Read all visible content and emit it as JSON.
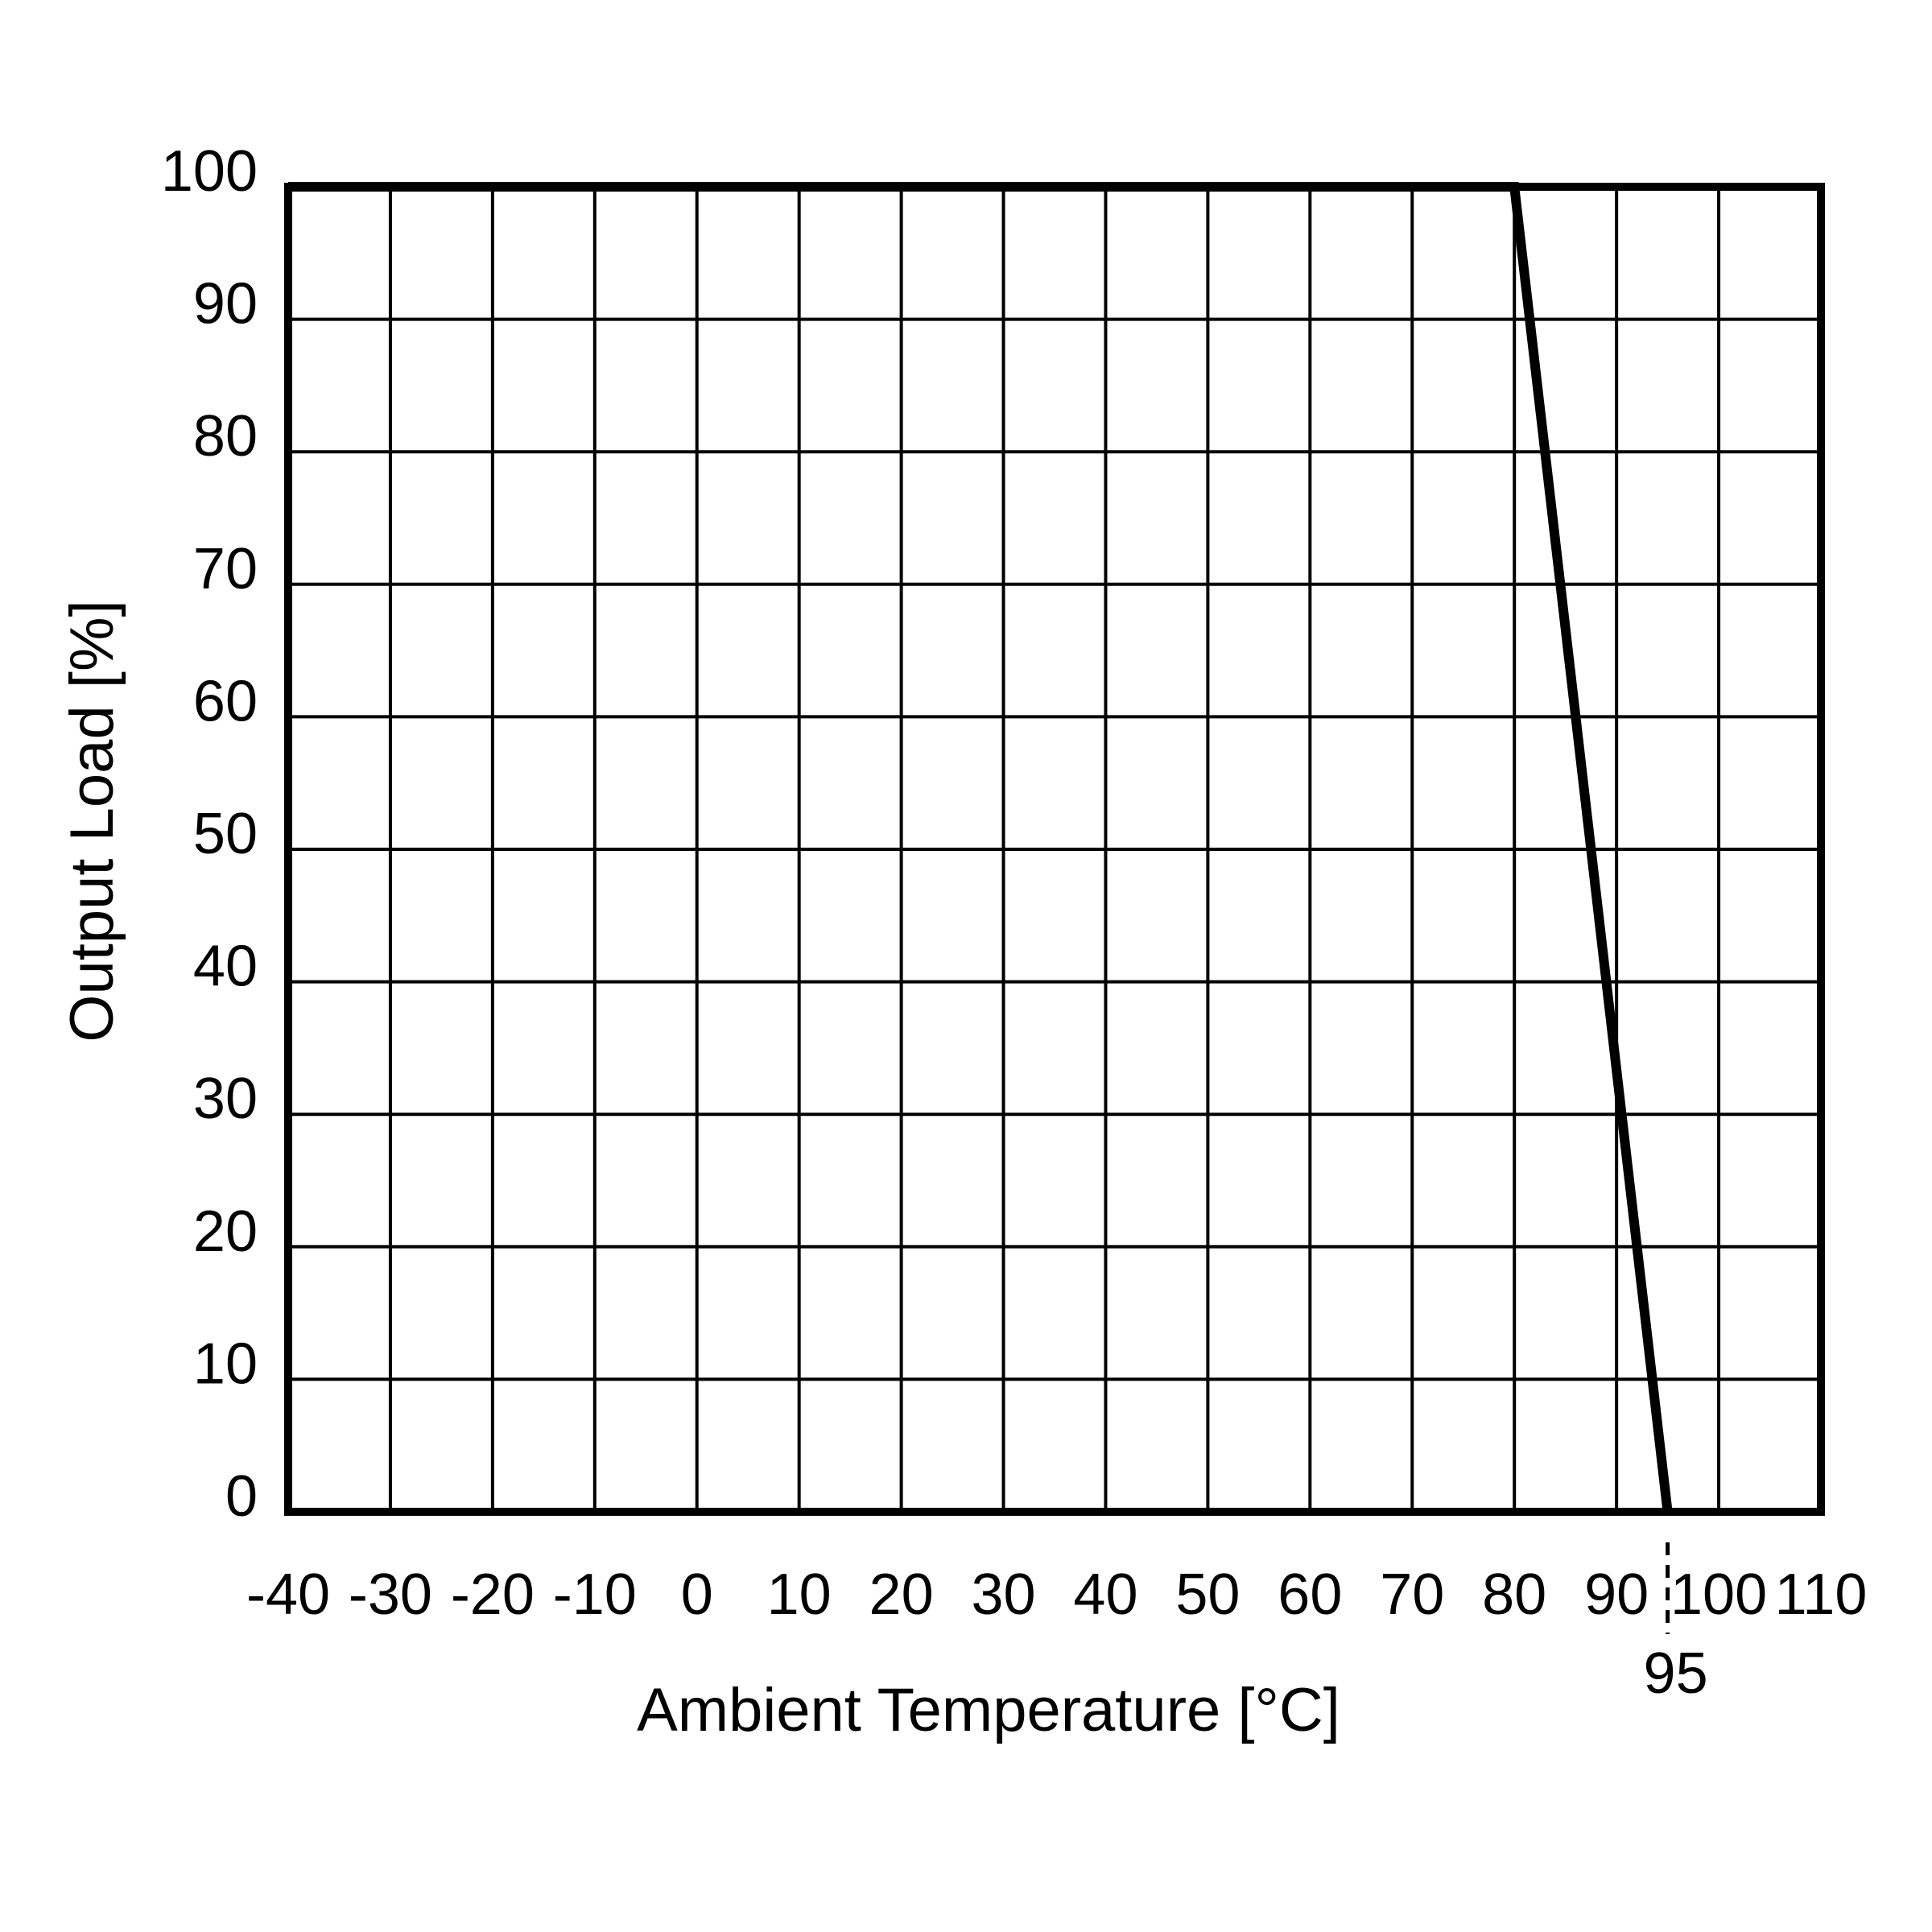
{
  "chart_data": {
    "type": "line",
    "title": "",
    "xlabel": "Ambient Temperature [°C]",
    "ylabel": "Output Load [%]",
    "xlim": [
      -40,
      110
    ],
    "ylim": [
      0,
      100
    ],
    "x_ticks": [
      {
        "value": -40,
        "label": "-40"
      },
      {
        "value": -30,
        "label": "-30"
      },
      {
        "value": -20,
        "label": "-20"
      },
      {
        "value": -10,
        "label": "-10"
      },
      {
        "value": 0,
        "label": "0"
      },
      {
        "value": 10,
        "label": "10"
      },
      {
        "value": 20,
        "label": "20"
      },
      {
        "value": 30,
        "label": "30"
      },
      {
        "value": 40,
        "label": "40"
      },
      {
        "value": 50,
        "label": "50"
      },
      {
        "value": 60,
        "label": "60"
      },
      {
        "value": 70,
        "label": "70"
      },
      {
        "value": 80,
        "label": "80"
      },
      {
        "value": 90,
        "label": "90"
      },
      {
        "value": 100,
        "label": "100"
      },
      {
        "value": 110,
        "label": "110"
      }
    ],
    "y_ticks": [
      {
        "value": 0,
        "label": "0"
      },
      {
        "value": 10,
        "label": "10"
      },
      {
        "value": 20,
        "label": "20"
      },
      {
        "value": 30,
        "label": "30"
      },
      {
        "value": 40,
        "label": "40"
      },
      {
        "value": 50,
        "label": "50"
      },
      {
        "value": 60,
        "label": "60"
      },
      {
        "value": 70,
        "label": "70"
      },
      {
        "value": 80,
        "label": "80"
      },
      {
        "value": 90,
        "label": "90"
      },
      {
        "value": 100,
        "label": "100"
      }
    ],
    "marker": {
      "value": 95,
      "label": "95",
      "style": "dashed"
    },
    "grid": true,
    "series": [
      {
        "x": [
          -40,
          80,
          95
        ],
        "y": [
          100,
          100,
          0
        ],
        "color": "#000000"
      }
    ]
  }
}
